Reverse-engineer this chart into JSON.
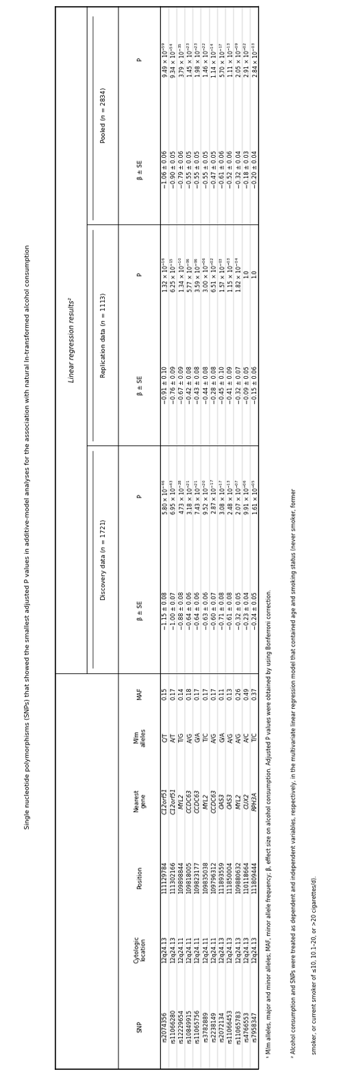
{
  "title": "Single nucleotide polymorphisms (SNPs) that showed the smallest adjusted P values in additive-model analyses for the association with natural ln-transformed alcohol consumption",
  "snps": [
    "rs2074356",
    "rs11066280",
    "rs12229654",
    "rs10849915",
    "rs11065756",
    "rs3782889",
    "rs2238149",
    "rs2072134",
    "rs11066453",
    "rs11065783",
    "rs4766553",
    "rs7958347"
  ],
  "cytologic": [
    "12q24.13",
    "12q24.13",
    "12q24.11",
    "12q24.11",
    "12q24.11",
    "12q24.11",
    "12q24.11",
    "12q24.13",
    "12q24.13",
    "12q24.13",
    "12q24.13",
    "12q24.13"
  ],
  "position": [
    "111129784",
    "111302166",
    "109898844",
    "109818005",
    "109823177",
    "109835038",
    "109796312",
    "111893559",
    "111850004",
    "109880632",
    "110118664",
    "111809444"
  ],
  "nearest_gene": [
    "C12orf51",
    "C12orf51",
    "MYL2",
    "CCDC63",
    "CCDC63",
    "MYL2",
    "CCDC63",
    "OAS3",
    "OAS3",
    "MYL2",
    "CUX2",
    "RPH3A"
  ],
  "Mm_alleles": [
    "C/T",
    "A/T",
    "T/G",
    "A/G",
    "G/A",
    "T/C",
    "A/G",
    "G/A",
    "A/G",
    "A/G",
    "A/C",
    "T/C"
  ],
  "MAF": [
    "0.15",
    "0.17",
    "0.14",
    "0.18",
    "0.17",
    "0.17",
    "0.17",
    "0.11",
    "0.13",
    "0.26",
    "0.49",
    "0.37"
  ],
  "disc_beta_se": [
    "−1.15 ± 0.08",
    "−1.00 ± 0.07",
    "−0.88 ± 0.08",
    "−0.64 ± 0.06",
    "−0.64 ± 0.06",
    "−0.63 ± 0.06",
    "−0.60 ± 0.07",
    "−0.71 ± 0.08",
    "−0.61 ± 0.08",
    "−0.32 ± 0.05",
    "−0.23 ± 0.04",
    "−0.24 ± 0.05"
  ],
  "disc_P_text": [
    "5.80 × 10$^{-46}$",
    "6.95 × 10$^{-43}$",
    "4.73 × 10$^{-28}$",
    "3.18 × 10$^{-21}$",
    "7.43 × 10$^{-21}$",
    "9.52 × 10$^{-20}$",
    "2.87 × 10$^{-17}$",
    "3.08 × 10$^{-17}$",
    "2.48 × 10$^{-13}$",
    "2.07 × 10$^{-07}$",
    "9.91 × 10$^{-06}$",
    "1.61 × 10$^{-05}$"
  ],
  "repl_beta_se": [
    "−0.91 ± 0.10",
    "−0.76 ± 0.09",
    "−0.67 ± 0.09",
    "−0.42 ± 0.08",
    "−0.43 ± 0.08",
    "−0.44 ± 0.08",
    "−0.28 ± 0.08",
    "−0.45 ± 0.10",
    "−0.41 ± 0.09",
    "−0.32 ± 0.07",
    "−0.09 ± 0.05",
    "−0.15 ± 0.06"
  ],
  "repl_P_text": [
    "1.32 × 10$^{-16}$",
    "6.25 × 10$^{-15}$",
    "1.34 × 10$^{-10}$",
    "5.77 × 10$^{-06}$",
    "3.59 × 10$^{-06}$",
    "3.00 × 10$^{-06}$",
    "6.51 × 10$^{-02}$",
    "1.57 × 10$^{-03}$",
    "1.15 × 10$^{-03}$",
    "1.82 × 10$^{-04}$",
    "1.0",
    "1.0"
  ],
  "pool_beta_se": [
    "−1.06 ± 0.06",
    "−0.90 ± 0.05",
    "−0.79 ± 0.06",
    "−0.55 ± 0.05",
    "−0.55 ± 0.05",
    "−0.55 ± 0.05",
    "−0.47 ± 0.05",
    "−0.61 ± 0.06",
    "−0.52 ± 0.06",
    "−0.32 ± 0.04",
    "−0.18 ± 0.03",
    "−0.20 ± 0.04"
  ],
  "pool_P_text": [
    "9.49 × 10$^{-59}$",
    "9.34 × 10$^{-54}$",
    "3.79 × 10$^{-35}$",
    "1.45 × 10$^{-23}$",
    "1.98 × 10$^{-23}$",
    "1.46 × 10$^{-22}$",
    "1.14 × 10$^{-14}$",
    "5.70 × 10$^{-17}$",
    "1.11 × 10$^{-13}$",
    "2.05 × 10$^{-09}$",
    "2.91 × 10$^{-02}$",
    "2.84 × 10$^{-03}$"
  ],
  "footnote1": "¹ M/m alleles, major and minor alleles; MAF, minor allele frequency; β, effect size on alcohol consumption. Adjusted P values were obtained by using Bonferroni correction.",
  "footnote2": "² Alcohol consumption and SNPs were treated as dependent and independent variables, respectively, in the multivariate linear regression model that contained age and smoking status (never smoker, former",
  "footnote3": "  smoker, or current smoker of ≤10, 10.1–20, or >20 cigarettes/d)."
}
